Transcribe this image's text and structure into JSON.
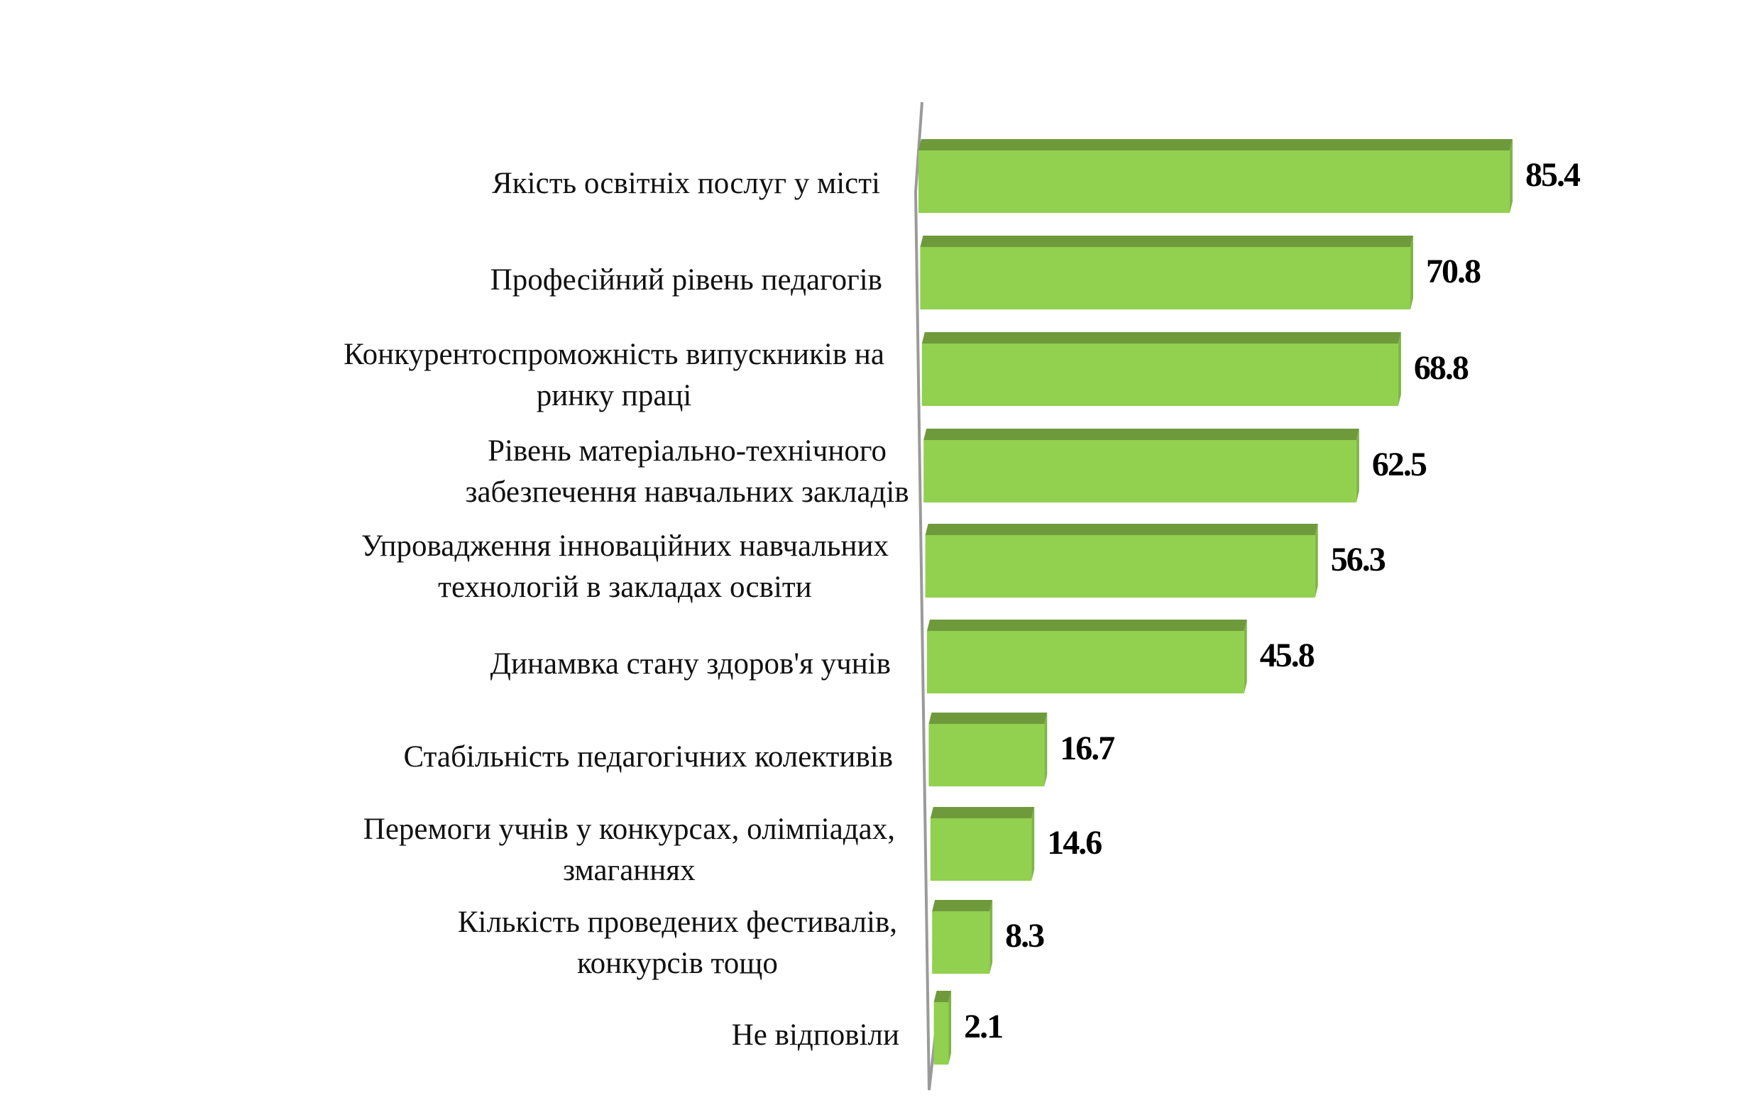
{
  "chart_data": {
    "type": "bar",
    "orientation": "horizontal",
    "title": "",
    "xlabel": "",
    "ylabel": "",
    "xlim": [
      0,
      85.4
    ],
    "grid": false,
    "categories": [
      [
        "Якість освітніх послуг у місті"
      ],
      [
        "Професійний рівень педагогів"
      ],
      [
        "Конкурентоспроможність випускників на",
        "ринку праці"
      ],
      [
        "Рівень матеріально-технічного",
        "забезпечення навчальних закладів"
      ],
      [
        "Упровадження інноваційних навчальних",
        "технологій в закладах освіти"
      ],
      [
        "Динамвка стану здоров'я учнів"
      ],
      [
        "Стабільність педагогічних колективів"
      ],
      [
        "Перемоги учнів у конкурсах, олімпіадах,",
        "змаганнях"
      ],
      [
        "Кількість проведених фестивалів,",
        "конкурсів тощо"
      ],
      [
        "Не відповіли"
      ]
    ],
    "values": [
      85.4,
      70.8,
      68.8,
      62.5,
      56.3,
      45.8,
      16.7,
      14.6,
      8.3,
      2.1
    ],
    "value_labels": [
      "85.4",
      "70.8",
      "68.8",
      "62.5",
      "56.3",
      "45.8",
      "16.7",
      "14.6",
      "8.3",
      "2.1"
    ],
    "colors": {
      "bar_face": "#92d050",
      "bar_top": "#6f9a3c",
      "bar_side": "#7fb545",
      "axis": "#9a9a9a"
    }
  }
}
